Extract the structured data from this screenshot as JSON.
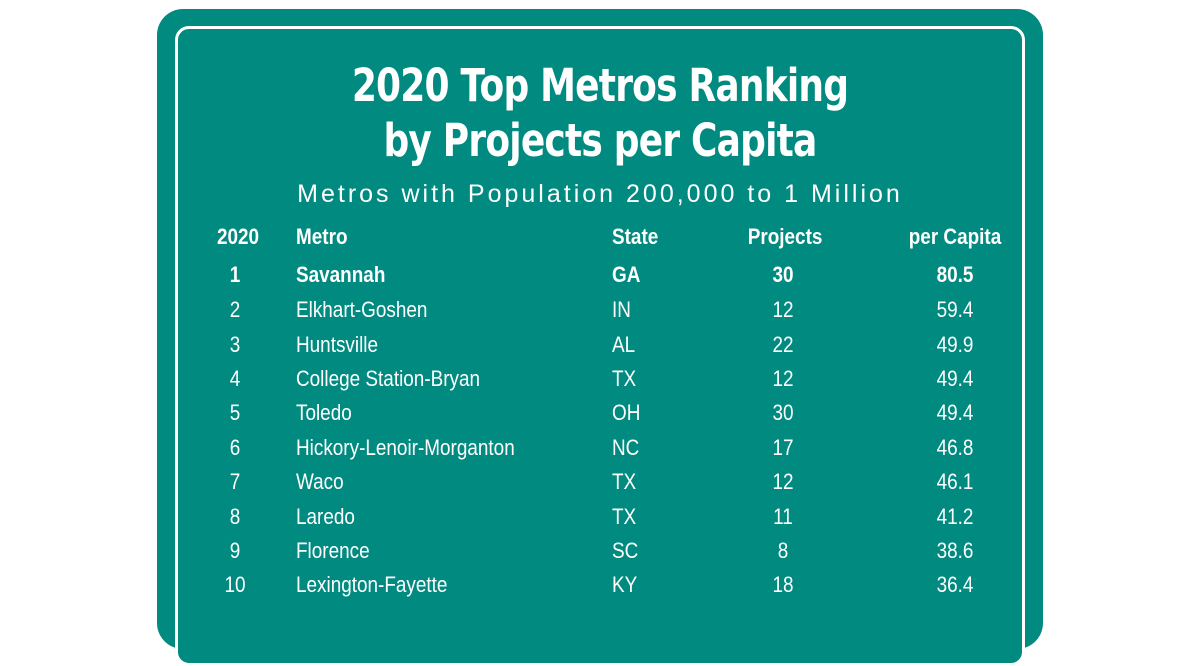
{
  "title_line1": "2020 Top Metros Ranking",
  "title_line2": "by Projects per Capita",
  "subtitle": "Metros with Population 200,000 to 1 Million",
  "headers": {
    "rank": "2020",
    "metro": "Metro",
    "state": "State",
    "projects": "Projects",
    "per_capita": "per Capita"
  },
  "rows": [
    {
      "rank": "1",
      "metro": "Savannah",
      "state": "GA",
      "projects": "30",
      "per_capita": "80.5"
    },
    {
      "rank": "2",
      "metro": "Elkhart-Goshen",
      "state": "IN",
      "projects": "12",
      "per_capita": "59.4"
    },
    {
      "rank": "3",
      "metro": "Huntsville",
      "state": "AL",
      "projects": "22",
      "per_capita": "49.9"
    },
    {
      "rank": "4",
      "metro": "College Station-Bryan",
      "state": "TX",
      "projects": "12",
      "per_capita": "49.4"
    },
    {
      "rank": "5",
      "metro": "Toledo",
      "state": "OH",
      "projects": "30",
      "per_capita": "49.4"
    },
    {
      "rank": "6",
      "metro": "Hickory-Lenoir-Morganton",
      "state": "NC",
      "projects": "17",
      "per_capita": "46.8"
    },
    {
      "rank": "7",
      "metro": "Waco",
      "state": "TX",
      "projects": "12",
      "per_capita": "46.1"
    },
    {
      "rank": "8",
      "metro": "Laredo",
      "state": "TX",
      "projects": "11",
      "per_capita": "41.2"
    },
    {
      "rank": "9",
      "metro": "Florence",
      "state": "SC",
      "projects": "8",
      "per_capita": "38.6"
    },
    {
      "rank": "10",
      "metro": "Lexington-Fayette",
      "state": "KY",
      "projects": "18",
      "per_capita": "36.4"
    }
  ],
  "colors": {
    "sign_green": "#008a80",
    "text": "#ffffff",
    "background": "#ffffff"
  }
}
